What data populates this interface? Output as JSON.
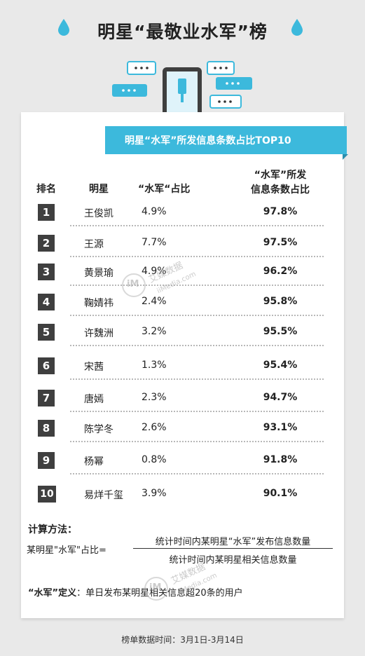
{
  "page": {
    "title": "明星“最敬业水军”榜",
    "banner": "明星“水军”所发信息条数占比TOP10",
    "footer": "榜单数据时间：3月1日-3月14日"
  },
  "table": {
    "headers": {
      "rank": "排名",
      "star": "明星",
      "ratio": "“水军“占比",
      "pct_line1": "“水军”所发",
      "pct_line2": "信息条数占比"
    }
  },
  "chart_data": {
    "type": "table",
    "columns": [
      "排名",
      "明星",
      "“水军“占比",
      "“水军”所发信息条数占比"
    ],
    "rows": [
      {
        "rank": "1",
        "name": "王俊凯",
        "ratio": "4.9%",
        "pct": "97.8%"
      },
      {
        "rank": "2",
        "name": "王源",
        "ratio": "7.7%",
        "pct": "97.5%"
      },
      {
        "rank": "3",
        "name": "黄景瑜",
        "ratio": "4.9%",
        "pct": "96.2%"
      },
      {
        "rank": "4",
        "name": "鞠婧祎",
        "ratio": "2.4%",
        "pct": "95.8%"
      },
      {
        "rank": "5",
        "name": "许魏洲",
        "ratio": "3.2%",
        "pct": "95.5%"
      },
      {
        "rank": "6",
        "name": "宋茜",
        "ratio": "1.3%",
        "pct": "95.4%"
      },
      {
        "rank": "7",
        "name": "唐嫣",
        "ratio": "2.3%",
        "pct": "94.7%"
      },
      {
        "rank": "8",
        "name": "陈学冬",
        "ratio": "2.6%",
        "pct": "93.1%"
      },
      {
        "rank": "9",
        "name": "杨幂",
        "ratio": "0.8%",
        "pct": "91.8%"
      },
      {
        "rank": "10",
        "name": "易烊千玺",
        "ratio": "3.9%",
        "pct": "90.1%"
      }
    ]
  },
  "calc": {
    "title": "计算方法：",
    "lhs": "某明星\"水军\"占比=",
    "numerator": "统计时间内某明星“水军”发布信息数量",
    "denominator": "统计时间内某明星相关信息数量"
  },
  "definition": {
    "term": "“水军”定义",
    "text": "：单日发布某明星相关信息超20条的用户"
  },
  "watermark": {
    "brand": "艾媒数据",
    "domain": "iiMedia.com",
    "logo": "iM"
  },
  "colors": {
    "accent": "#3cb9dc",
    "rank_box": "#3f3f3f",
    "background": "#e9e9e9"
  },
  "icons": [
    "water-drop-icon",
    "phone-icon",
    "chat-bubble-icon"
  ]
}
